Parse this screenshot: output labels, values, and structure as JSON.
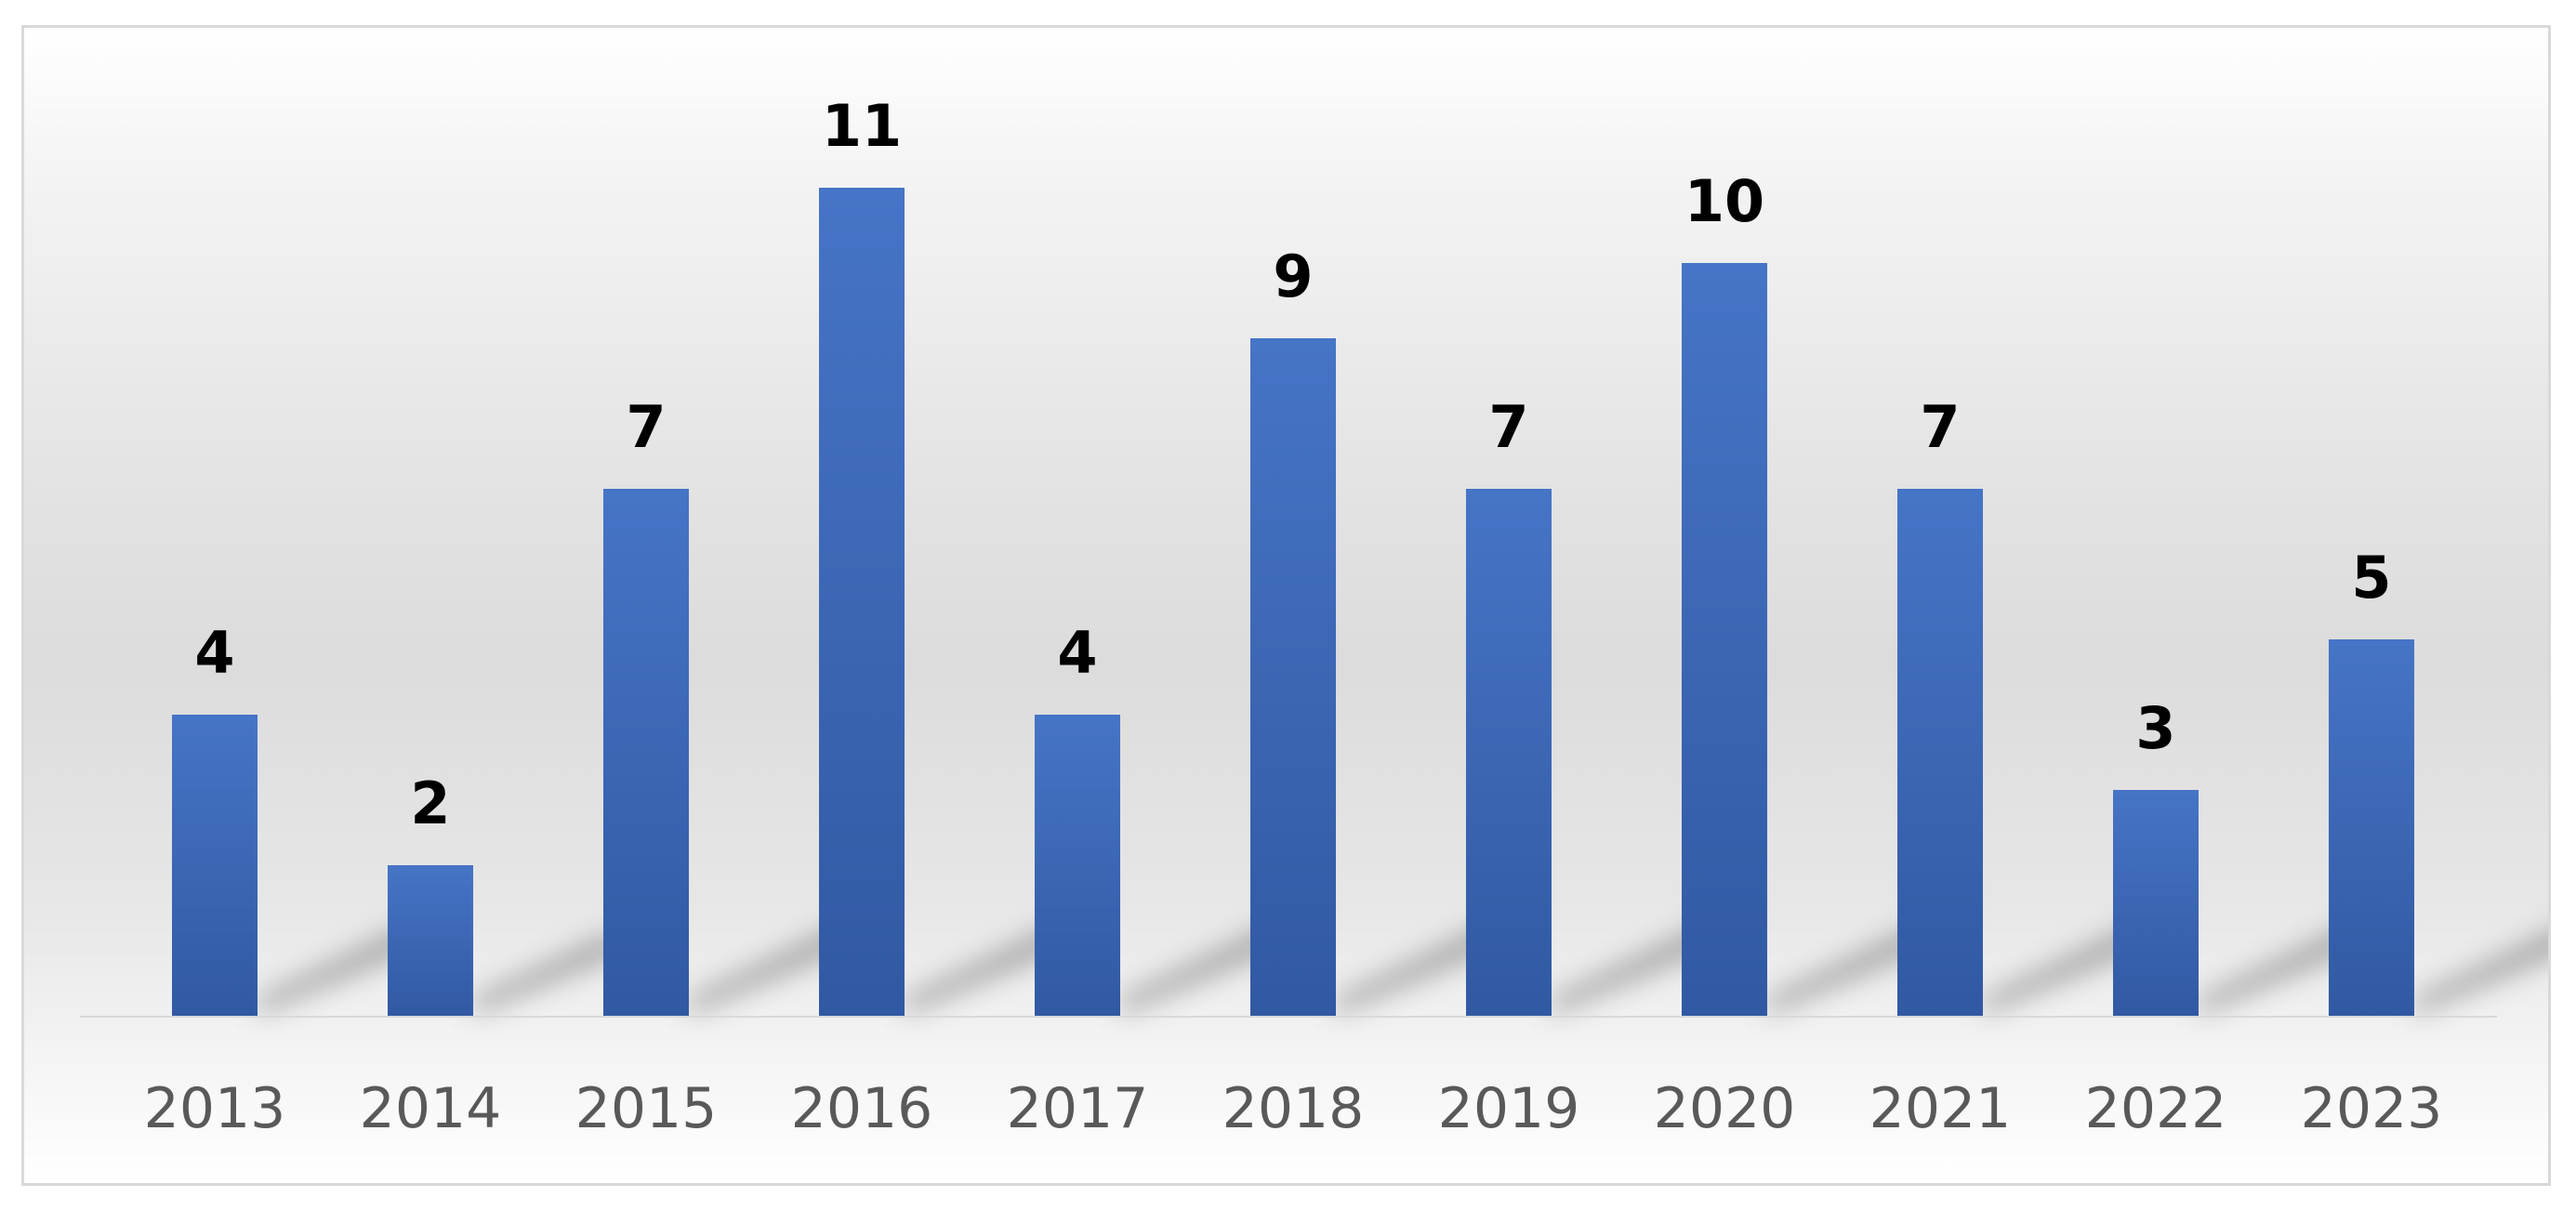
{
  "chart_data": {
    "type": "bar",
    "categories": [
      "2013",
      "2014",
      "2015",
      "2016",
      "2017",
      "2018",
      "2019",
      "2020",
      "2021",
      "2022",
      "2023"
    ],
    "values": [
      4,
      2,
      7,
      11,
      4,
      9,
      7,
      10,
      7,
      3,
      5
    ],
    "data_labels": [
      "4",
      "2",
      "7",
      "11",
      "4",
      "9",
      "7",
      "10",
      "7",
      "3",
      "5"
    ],
    "title": "",
    "xlabel": "",
    "ylabel": "",
    "ylim": [
      0,
      11
    ],
    "grid": false,
    "legend": "none",
    "bar_color": "#4472C4",
    "bar_color_dark": "#2F5597"
  }
}
